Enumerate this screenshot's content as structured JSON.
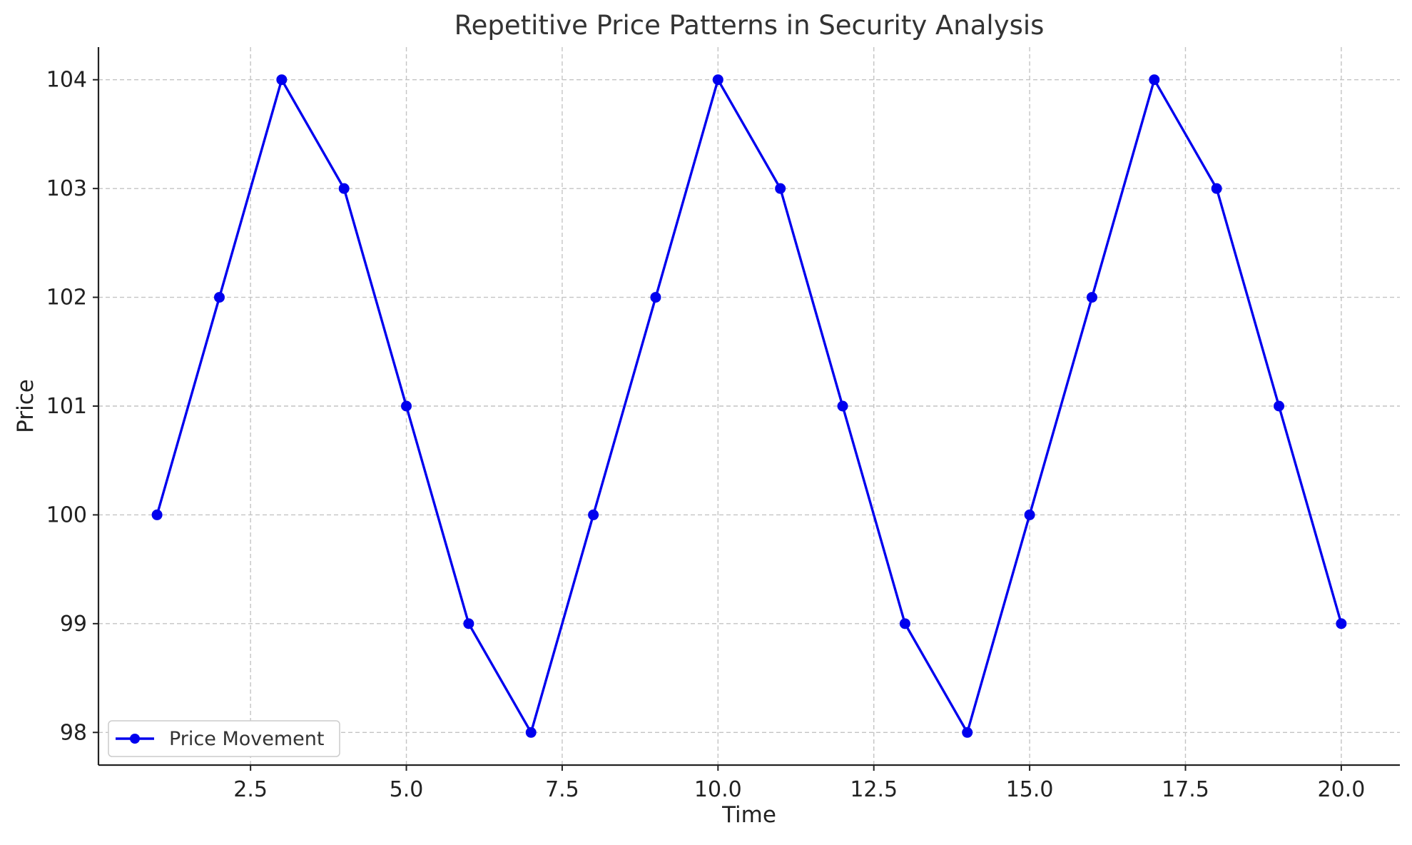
{
  "chart_data": {
    "type": "line",
    "title": "Repetitive Price Patterns in Security Analysis",
    "xlabel": "Time",
    "ylabel": "Price",
    "xlim": [
      0.06,
      20.94
    ],
    "ylim": [
      97.7,
      104.3
    ],
    "xticks": [
      2.5,
      5.0,
      7.5,
      10.0,
      12.5,
      15.0,
      17.5,
      20.0
    ],
    "xtick_labels": [
      "2.5",
      "5.0",
      "7.5",
      "10.0",
      "12.5",
      "15.0",
      "17.5",
      "20.0"
    ],
    "yticks": [
      98,
      99,
      100,
      101,
      102,
      103,
      104
    ],
    "ytick_labels": [
      "98",
      "99",
      "100",
      "101",
      "102",
      "103",
      "104"
    ],
    "grid": true,
    "legend_position": "lower-left",
    "series": [
      {
        "name": "Price Movement",
        "color": "#0000ee",
        "marker": "circle",
        "x": [
          1,
          2,
          3,
          4,
          5,
          6,
          7,
          8,
          9,
          10,
          11,
          12,
          13,
          14,
          15,
          16,
          17,
          18,
          19,
          20
        ],
        "y": [
          100,
          102,
          104,
          103,
          101,
          99,
          98,
          100,
          102,
          104,
          103,
          101,
          99,
          98,
          100,
          102,
          104,
          103,
          101,
          99
        ]
      }
    ]
  }
}
